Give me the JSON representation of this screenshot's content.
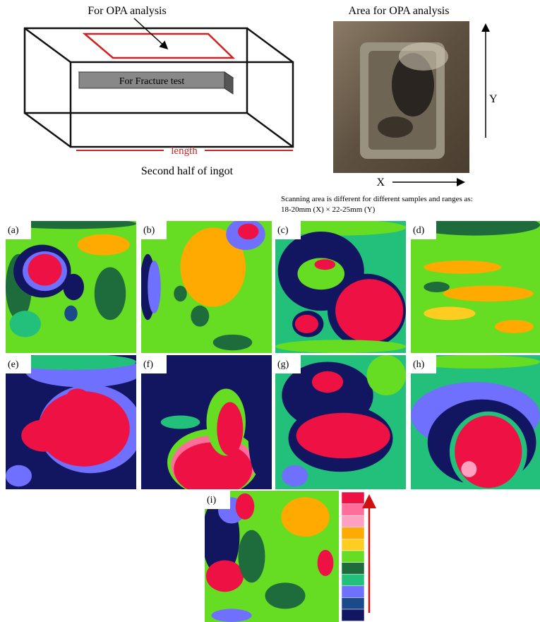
{
  "diagram": {
    "opa_label": "For OPA analysis",
    "fracture_label": "For Fracture test",
    "length_label": "length",
    "caption": "Second half of ingot"
  },
  "photo": {
    "title": "Area for OPA analysis",
    "y_label": "Y",
    "x_label": "X",
    "note_lines": [
      "Scanning area is different for different samples and ranges as:",
      "18-20mm (X) × 22-25mm (Y)"
    ]
  },
  "panels": [
    "(a)",
    "(b)",
    "(c)",
    "(d)",
    "(e)",
    "(f)",
    "(g)",
    "(h)",
    "(i)"
  ]
}
